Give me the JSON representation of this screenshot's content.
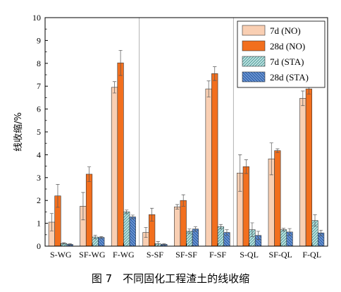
{
  "chart_data": {
    "type": "bar",
    "title": "",
    "xlabel": "",
    "ylabel": "线收缩/%",
    "ylim": [
      0,
      10
    ],
    "yticks": [
      0,
      1,
      2,
      3,
      4,
      5,
      6,
      7,
      8,
      9,
      10
    ],
    "grid": false,
    "legend_position": "top-right",
    "categories": [
      "S-WG",
      "SF-WG",
      "F-WG",
      "S-SF",
      "SF-SF",
      "F-SF",
      "S-QL",
      "SF-QL",
      "F-QL"
    ],
    "group_separators_after": [
      2,
      5
    ],
    "series": [
      {
        "name": "7d (NO)",
        "color": "#f9cfb3",
        "pattern": "none",
        "values": [
          1.05,
          1.75,
          6.95,
          0.6,
          1.72,
          6.88,
          3.2,
          3.82,
          6.47
        ],
        "errors": [
          0.38,
          0.6,
          0.25,
          0.22,
          0.1,
          0.35,
          0.8,
          0.7,
          0.32
        ]
      },
      {
        "name": "28d (NO)",
        "color": "#f26f1e",
        "pattern": "none",
        "values": [
          2.2,
          3.15,
          8.02,
          1.38,
          2.0,
          7.55,
          3.48,
          4.18,
          6.88
        ],
        "errors": [
          0.5,
          0.32,
          0.55,
          0.28,
          0.25,
          0.3,
          0.3,
          0.08,
          0.22
        ]
      },
      {
        "name": "7d (STA)",
        "color": "#bfe3e2",
        "pattern": "diag-right",
        "values": [
          0.12,
          0.4,
          1.5,
          0.1,
          0.65,
          0.85,
          0.72,
          0.72,
          1.12
        ],
        "errors": [
          0.03,
          0.08,
          0.08,
          0.1,
          0.1,
          0.1,
          0.3,
          0.06,
          0.25
        ]
      },
      {
        "name": "28d (STA)",
        "color": "#3a6bb3",
        "pattern": "diag-left",
        "values": [
          0.08,
          0.38,
          1.28,
          0.08,
          0.75,
          0.6,
          0.47,
          0.62,
          0.58
        ],
        "errors": [
          0.03,
          0.04,
          0.08,
          0.03,
          0.1,
          0.12,
          0.18,
          0.15,
          0.12
        ]
      }
    ]
  },
  "figure_caption": "图 7　不同固化工程渣土的线收缩"
}
